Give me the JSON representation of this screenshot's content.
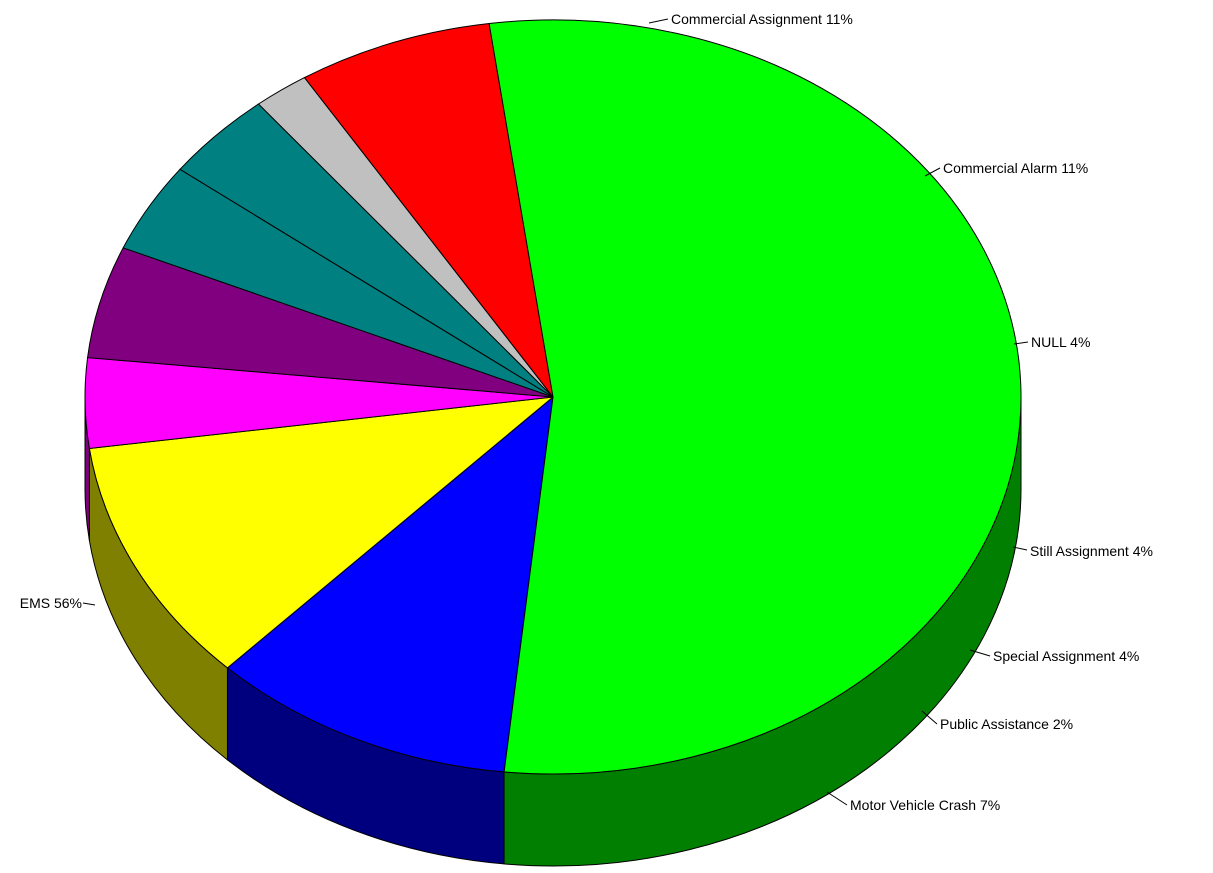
{
  "chart_data": {
    "type": "pie",
    "style": "3d",
    "title": "",
    "slices": [
      {
        "label": "Commercial Assignment 11%",
        "value": 11,
        "color": "#0000FF",
        "side": "#00007F"
      },
      {
        "label": "Commercial Alarm 11%",
        "value": 11,
        "color": "#FFFF00",
        "side": "#7F7F00"
      },
      {
        "label": "NULL 4%",
        "value": 4,
        "color": "#FF00FF",
        "side": "#7F007F"
      },
      {
        "label": "",
        "value": 5,
        "color": "#800080",
        "side": "#400040"
      },
      {
        "label": "Still Assignment 4%",
        "value": 4,
        "color": "#008080",
        "side": "#004040"
      },
      {
        "label": "Special Assignment 4%",
        "value": 4,
        "color": "#008080",
        "side": "#004040"
      },
      {
        "label": "Public Assistance 2%",
        "value": 2,
        "color": "#C0C0C0",
        "side": "#606060"
      },
      {
        "label": "Motor Vehicle Crash 7%",
        "value": 7,
        "color": "#FF0000",
        "side": "#7F0000"
      },
      {
        "label": "EMS 56%",
        "value": 56,
        "color": "#00FF00",
        "side": "#007F00"
      }
    ]
  }
}
